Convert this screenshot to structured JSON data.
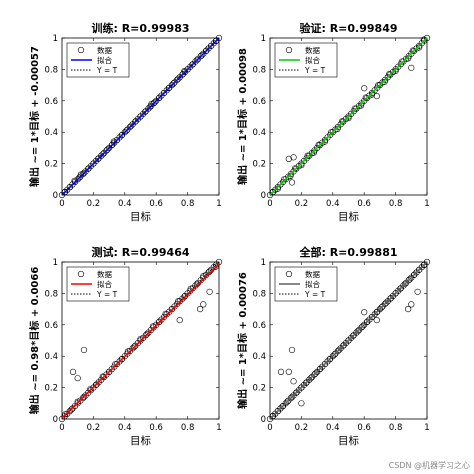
{
  "watermark": "CSDN @机器学习之心",
  "legend_labels": [
    "数据",
    "拟合",
    "Y = T"
  ],
  "chart_data": [
    {
      "type": "scatter",
      "title": "训练: R=0.99983",
      "xlabel": "目标",
      "ylabel": "输出 ~= 1*目标 + -0.00057",
      "xlim": [
        0,
        1
      ],
      "ylim": [
        0,
        1
      ],
      "xticks": [
        "0",
        "0.2",
        "0.4",
        "0.6",
        "0.8",
        "1"
      ],
      "yticks": [
        "0",
        "0.2",
        "0.4",
        "0.6",
        "0.8",
        "1"
      ],
      "fit": {
        "slope": 1,
        "intercept": -0.00057,
        "color": "#0000ff"
      },
      "identity_line": {
        "style": "dotted"
      },
      "legend_position": "top-left",
      "points": [
        [
          0.02,
          0.02
        ],
        [
          0.05,
          0.05
        ],
        [
          0.08,
          0.09
        ],
        [
          0.11,
          0.11
        ],
        [
          0.14,
          0.14
        ],
        [
          0.17,
          0.17
        ],
        [
          0.2,
          0.2
        ],
        [
          0.23,
          0.23
        ],
        [
          0.26,
          0.26
        ],
        [
          0.29,
          0.29
        ],
        [
          0.32,
          0.32
        ],
        [
          0.35,
          0.35
        ],
        [
          0.38,
          0.38
        ],
        [
          0.41,
          0.41
        ],
        [
          0.44,
          0.44
        ],
        [
          0.47,
          0.47
        ],
        [
          0.5,
          0.5
        ],
        [
          0.53,
          0.53
        ],
        [
          0.56,
          0.56
        ],
        [
          0.59,
          0.59
        ],
        [
          0.62,
          0.62
        ],
        [
          0.65,
          0.65
        ],
        [
          0.68,
          0.68
        ],
        [
          0.71,
          0.71
        ],
        [
          0.74,
          0.74
        ],
        [
          0.77,
          0.77
        ],
        [
          0.8,
          0.8
        ],
        [
          0.83,
          0.83
        ],
        [
          0.86,
          0.86
        ],
        [
          0.89,
          0.89
        ],
        [
          0.92,
          0.92
        ],
        [
          0.95,
          0.95
        ],
        [
          0.98,
          0.98
        ],
        [
          0.12,
          0.13
        ],
        [
          0.33,
          0.34
        ],
        [
          0.57,
          0.58
        ],
        [
          0.78,
          0.79
        ]
      ]
    },
    {
      "type": "scatter",
      "title": "验证: R=0.99849",
      "xlabel": "目标",
      "ylabel": "输出 ~= 1*目标 + 0.00098",
      "xlim": [
        0,
        1
      ],
      "ylim": [
        0,
        1
      ],
      "xticks": [
        "0",
        "0.2",
        "0.4",
        "0.6",
        "0.8",
        "1"
      ],
      "yticks": [
        "0",
        "0.2",
        "0.4",
        "0.6",
        "0.8",
        "1"
      ],
      "fit": {
        "slope": 1,
        "intercept": 0.00098,
        "color": "#00cc00"
      },
      "identity_line": {
        "style": "dotted"
      },
      "legend_position": "top-left",
      "points": [
        [
          0.02,
          0.02
        ],
        [
          0.05,
          0.04
        ],
        [
          0.09,
          0.1
        ],
        [
          0.13,
          0.12
        ],
        [
          0.16,
          0.17
        ],
        [
          0.2,
          0.19
        ],
        [
          0.24,
          0.25
        ],
        [
          0.28,
          0.27
        ],
        [
          0.31,
          0.32
        ],
        [
          0.35,
          0.34
        ],
        [
          0.39,
          0.4
        ],
        [
          0.43,
          0.42
        ],
        [
          0.46,
          0.47
        ],
        [
          0.5,
          0.49
        ],
        [
          0.54,
          0.55
        ],
        [
          0.58,
          0.57
        ],
        [
          0.61,
          0.62
        ],
        [
          0.65,
          0.64
        ],
        [
          0.69,
          0.7
        ],
        [
          0.73,
          0.72
        ],
        [
          0.76,
          0.77
        ],
        [
          0.8,
          0.79
        ],
        [
          0.84,
          0.85
        ],
        [
          0.88,
          0.87
        ],
        [
          0.91,
          0.92
        ],
        [
          0.95,
          0.94
        ],
        [
          0.98,
          0.99
        ],
        [
          0.15,
          0.24
        ],
        [
          0.12,
          0.23
        ],
        [
          0.6,
          0.68
        ],
        [
          0.68,
          0.63
        ],
        [
          0.9,
          0.81
        ],
        [
          0.14,
          0.08
        ]
      ]
    },
    {
      "type": "scatter",
      "title": "测试: R=0.99464",
      "xlabel": "目标",
      "ylabel": "输出 ~= 0.98*目标 + 0.0066",
      "xlim": [
        0,
        1
      ],
      "ylim": [
        0,
        1
      ],
      "xticks": [
        "0",
        "0.2",
        "0.4",
        "0.6",
        "0.8",
        "1"
      ],
      "yticks": [
        "0",
        "0.2",
        "0.4",
        "0.6",
        "0.8",
        "1"
      ],
      "fit": {
        "slope": 0.98,
        "intercept": 0.0066,
        "color": "#ff0000"
      },
      "identity_line": {
        "style": "dotted"
      },
      "legend_position": "top-left",
      "points": [
        [
          0.02,
          0.03
        ],
        [
          0.06,
          0.06
        ],
        [
          0.1,
          0.11
        ],
        [
          0.14,
          0.14
        ],
        [
          0.18,
          0.19
        ],
        [
          0.22,
          0.22
        ],
        [
          0.26,
          0.27
        ],
        [
          0.3,
          0.3
        ],
        [
          0.34,
          0.35
        ],
        [
          0.38,
          0.38
        ],
        [
          0.42,
          0.43
        ],
        [
          0.46,
          0.46
        ],
        [
          0.5,
          0.51
        ],
        [
          0.54,
          0.54
        ],
        [
          0.58,
          0.59
        ],
        [
          0.62,
          0.62
        ],
        [
          0.66,
          0.67
        ],
        [
          0.7,
          0.7
        ],
        [
          0.74,
          0.75
        ],
        [
          0.78,
          0.78
        ],
        [
          0.82,
          0.83
        ],
        [
          0.86,
          0.86
        ],
        [
          0.9,
          0.91
        ],
        [
          0.94,
          0.94
        ],
        [
          0.98,
          0.97
        ],
        [
          0.14,
          0.44
        ],
        [
          0.07,
          0.3
        ],
        [
          0.1,
          0.26
        ],
        [
          0.88,
          0.7
        ],
        [
          0.9,
          0.73
        ],
        [
          0.94,
          0.81
        ],
        [
          0.75,
          0.63
        ]
      ]
    },
    {
      "type": "scatter",
      "title": "全部: R=0.99881",
      "xlabel": "目标",
      "ylabel": "输出 ~= 1*目标 + 0.00076",
      "xlim": [
        0,
        1
      ],
      "ylim": [
        0,
        1
      ],
      "xticks": [
        "0",
        "0.2",
        "0.4",
        "0.6",
        "0.8",
        "1"
      ],
      "yticks": [
        "0",
        "0.2",
        "0.4",
        "0.6",
        "0.8",
        "1"
      ],
      "fit": {
        "slope": 1,
        "intercept": 0.00076,
        "color": "#606060"
      },
      "identity_line": {
        "style": "dotted"
      },
      "legend_position": "top-left",
      "points": [
        [
          0.02,
          0.02
        ],
        [
          0.05,
          0.05
        ],
        [
          0.08,
          0.08
        ],
        [
          0.11,
          0.11
        ],
        [
          0.14,
          0.14
        ],
        [
          0.17,
          0.17
        ],
        [
          0.2,
          0.2
        ],
        [
          0.23,
          0.23
        ],
        [
          0.26,
          0.26
        ],
        [
          0.29,
          0.29
        ],
        [
          0.32,
          0.32
        ],
        [
          0.35,
          0.35
        ],
        [
          0.38,
          0.38
        ],
        [
          0.41,
          0.41
        ],
        [
          0.44,
          0.44
        ],
        [
          0.47,
          0.47
        ],
        [
          0.5,
          0.5
        ],
        [
          0.53,
          0.53
        ],
        [
          0.56,
          0.56
        ],
        [
          0.59,
          0.59
        ],
        [
          0.62,
          0.62
        ],
        [
          0.65,
          0.65
        ],
        [
          0.68,
          0.68
        ],
        [
          0.71,
          0.71
        ],
        [
          0.74,
          0.74
        ],
        [
          0.77,
          0.77
        ],
        [
          0.8,
          0.8
        ],
        [
          0.83,
          0.83
        ],
        [
          0.86,
          0.86
        ],
        [
          0.89,
          0.89
        ],
        [
          0.92,
          0.92
        ],
        [
          0.95,
          0.95
        ],
        [
          0.98,
          0.98
        ],
        [
          0.14,
          0.44
        ],
        [
          0.12,
          0.3
        ],
        [
          0.07,
          0.3
        ],
        [
          0.15,
          0.24
        ],
        [
          0.2,
          0.1
        ],
        [
          0.9,
          0.73
        ],
        [
          0.94,
          0.81
        ],
        [
          0.88,
          0.7
        ],
        [
          0.6,
          0.68
        ],
        [
          0.68,
          0.63
        ]
      ]
    }
  ]
}
